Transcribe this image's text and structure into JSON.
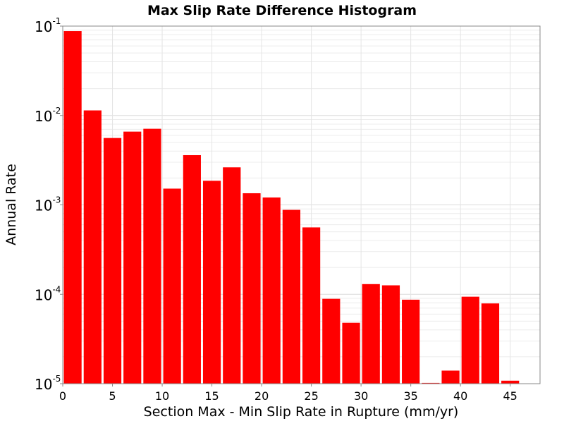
{
  "chart_data": {
    "type": "bar",
    "title": "Max Slip Rate Difference Histogram",
    "xlabel": "Section Max - Min Slip Rate in Rupture (mm/yr)",
    "ylabel": "Annual Rate",
    "xlim": [
      0,
      48
    ],
    "ylim": [
      1e-05,
      0.1
    ],
    "y_scale": "log",
    "bin_width": 2,
    "x_ticks": [
      "0",
      "5",
      "10",
      "15",
      "20",
      "25",
      "30",
      "35",
      "40",
      "45"
    ],
    "x_tick_values": [
      0,
      5,
      10,
      15,
      20,
      25,
      30,
      35,
      40,
      45
    ],
    "y_ticks": [
      {
        "base": "10",
        "exp": "-5",
        "value": 1e-05
      },
      {
        "base": "10",
        "exp": "-4",
        "value": 0.0001
      },
      {
        "base": "10",
        "exp": "-3",
        "value": 0.001
      },
      {
        "base": "10",
        "exp": "-2",
        "value": 0.01
      },
      {
        "base": "10",
        "exp": "-1",
        "value": 0.1
      }
    ],
    "grid": true,
    "bar_color": "#ff0000",
    "bins": [
      {
        "x": 1,
        "value": 0.088
      },
      {
        "x": 3,
        "value": 0.0114
      },
      {
        "x": 5,
        "value": 0.0056
      },
      {
        "x": 7,
        "value": 0.0066
      },
      {
        "x": 9,
        "value": 0.0071
      },
      {
        "x": 11,
        "value": 0.00152
      },
      {
        "x": 13,
        "value": 0.0036
      },
      {
        "x": 15,
        "value": 0.00186
      },
      {
        "x": 17,
        "value": 0.00263
      },
      {
        "x": 19,
        "value": 0.00135
      },
      {
        "x": 21,
        "value": 0.00121
      },
      {
        "x": 23,
        "value": 0.00088
      },
      {
        "x": 25,
        "value": 0.00056
      },
      {
        "x": 27,
        "value": 8.9e-05
      },
      {
        "x": 29,
        "value": 4.8e-05
      },
      {
        "x": 31,
        "value": 0.00013
      },
      {
        "x": 33,
        "value": 0.000126
      },
      {
        "x": 35,
        "value": 8.7e-05
      },
      {
        "x": 37,
        "value": 1.02e-05
      },
      {
        "x": 39,
        "value": 1.4e-05
      },
      {
        "x": 41,
        "value": 9.4e-05
      },
      {
        "x": 43,
        "value": 7.9e-05
      },
      {
        "x": 45,
        "value": 1.08e-05
      }
    ]
  }
}
